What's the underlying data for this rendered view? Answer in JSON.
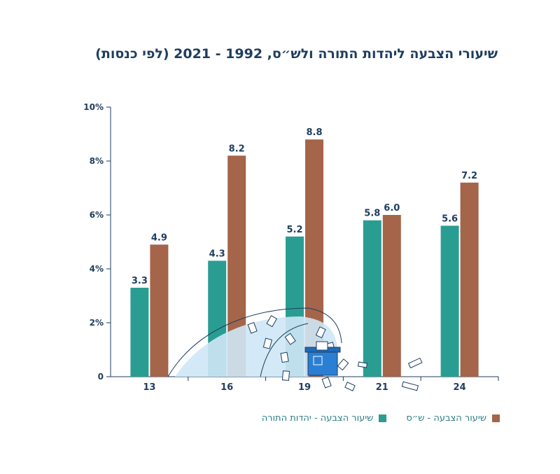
{
  "chart_data": {
    "type": "bar",
    "title": "שיעורי הצבעה ליהדות התורה ולש״ס, 1992 - 2021 (לפי כנסות)",
    "categories": [
      "13",
      "16",
      "19",
      "21",
      "24"
    ],
    "series": [
      {
        "name": "שיעור הצבעה - יהדות התורה",
        "values": [
          3.3,
          4.3,
          5.2,
          5.8,
          5.6
        ],
        "color": "#2a9d93"
      },
      {
        "name": "שיעור הצבעה - ש״ס",
        "values": [
          4.9,
          8.2,
          8.8,
          6.0,
          7.2
        ],
        "color": "#a4654a"
      }
    ],
    "value_labels": [
      [
        "3.3",
        "4.3",
        "5.2",
        "5.8",
        "5.6"
      ],
      [
        "4.9",
        "8.2",
        "8.8",
        "6.0",
        "7.2"
      ]
    ],
    "yticks": [
      {
        "value": 0,
        "label": "0"
      },
      {
        "value": 2,
        "label": "2%"
      },
      {
        "value": 4,
        "label": "4%"
      },
      {
        "value": 6,
        "label": "6%"
      },
      {
        "value": 8,
        "label": "8%"
      },
      {
        "value": 10,
        "label": "10%"
      }
    ],
    "ylim": [
      0,
      10
    ],
    "xlabel": "",
    "ylabel": "",
    "grid": false,
    "legend_position": "bottom",
    "label_color": "#1e3d5f",
    "legend_text_color": "#2e7f84",
    "illustration": "ballot-box-with-flying-ballots"
  }
}
